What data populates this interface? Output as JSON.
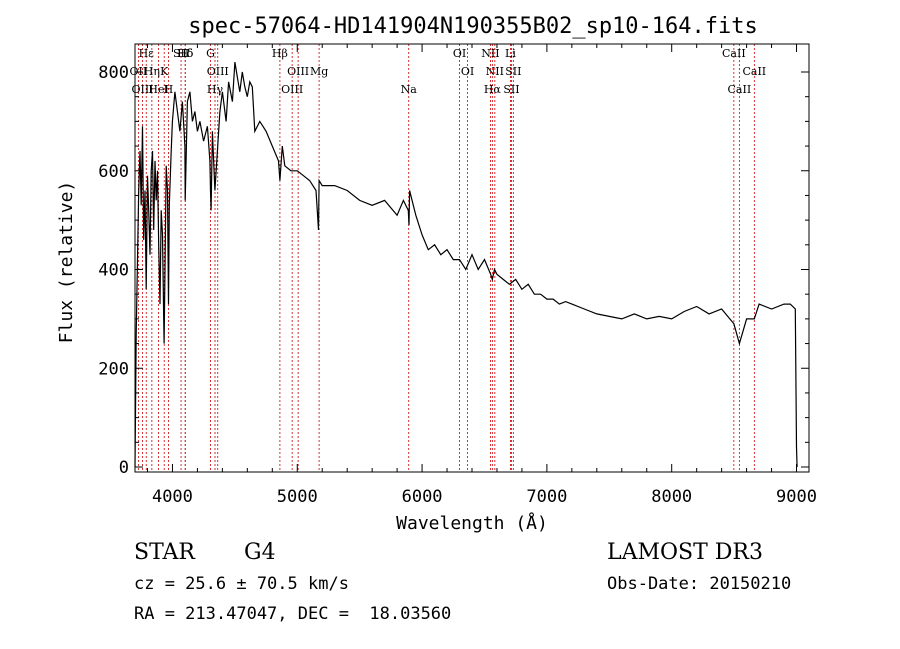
{
  "chart_data": {
    "type": "line",
    "title": "spec-57064-HD141904N190355B02_sp10-164.fits",
    "xlabel": "Wavelength (Å)",
    "ylabel": "Flux (relative)",
    "xlim": [
      3700,
      9100
    ],
    "ylim": [
      0,
      850
    ],
    "xticks": [
      4000,
      5000,
      6000,
      7000,
      8000,
      9000
    ],
    "yticks": [
      0,
      200,
      400,
      600,
      800
    ],
    "series": [
      {
        "name": "spectrum",
        "x": [
          3700,
          3710,
          3720,
          3730,
          3740,
          3750,
          3760,
          3770,
          3780,
          3790,
          3800,
          3810,
          3820,
          3830,
          3840,
          3850,
          3860,
          3870,
          3880,
          3890,
          3900,
          3910,
          3920,
          3930,
          3933,
          3940,
          3950,
          3960,
          3968,
          3975,
          3990,
          4000,
          4020,
          4040,
          4060,
          4080,
          4100,
          4102,
          4120,
          4140,
          4160,
          4180,
          4200,
          4220,
          4250,
          4280,
          4300,
          4305,
          4310,
          4320,
          4340,
          4360,
          4380,
          4400,
          4430,
          4450,
          4480,
          4500,
          4520,
          4540,
          4560,
          4580,
          4600,
          4620,
          4640,
          4660,
          4700,
          4750,
          4800,
          4850,
          4861,
          4880,
          4900,
          4950,
          5000,
          5050,
          5100,
          5150,
          5170,
          5175,
          5200,
          5300,
          5400,
          5500,
          5600,
          5700,
          5800,
          5850,
          5890,
          5895,
          5900,
          5950,
          6000,
          6050,
          6100,
          6150,
          6200,
          6250,
          6300,
          6350,
          6400,
          6450,
          6500,
          6550,
          6563,
          6580,
          6600,
          6650,
          6700,
          6750,
          6800,
          6850,
          6900,
          6950,
          7000,
          7050,
          7100,
          7150,
          7200,
          7300,
          7400,
          7500,
          7600,
          7700,
          7800,
          7900,
          8000,
          8100,
          8200,
          8300,
          8400,
          8498,
          8542,
          8600,
          8662,
          8700,
          8800,
          8900,
          8950,
          8990,
          9000,
          9005
        ],
        "y": [
          0,
          270,
          420,
          560,
          640,
          530,
          690,
          460,
          560,
          360,
          590,
          520,
          430,
          600,
          640,
          480,
          620,
          540,
          600,
          450,
          330,
          520,
          470,
          300,
          250,
          400,
          610,
          560,
          330,
          530,
          640,
          700,
          760,
          720,
          680,
          740,
          650,
          540,
          740,
          760,
          700,
          720,
          680,
          700,
          660,
          690,
          620,
          560,
          520,
          680,
          560,
          640,
          720,
          760,
          700,
          780,
          740,
          820,
          790,
          760,
          800,
          770,
          750,
          780,
          770,
          680,
          700,
          680,
          650,
          620,
          580,
          650,
          610,
          600,
          600,
          590,
          580,
          560,
          480,
          580,
          570,
          570,
          560,
          540,
          530,
          540,
          510,
          540,
          520,
          490,
          560,
          510,
          470,
          440,
          450,
          430,
          440,
          420,
          420,
          400,
          430,
          400,
          420,
          390,
          380,
          400,
          390,
          380,
          370,
          380,
          360,
          370,
          350,
          350,
          340,
          340,
          330,
          335,
          330,
          320,
          310,
          305,
          300,
          310,
          300,
          305,
          300,
          315,
          325,
          310,
          320,
          290,
          250,
          300,
          300,
          330,
          320,
          330,
          330,
          320,
          40,
          0
        ]
      }
    ],
    "line_markers": [
      {
        "label": "Hδ",
        "x": 4102
      },
      {
        "label": "OII",
        "x": 3727
      },
      {
        "label": "OIII",
        "x": 3760
      },
      {
        "label": "Hε",
        "x": 3790
      },
      {
        "label": "K",
        "x": 3934
      },
      {
        "label": "HeI",
        "x": 3889
      },
      {
        "label": "SII",
        "x": 4069
      },
      {
        "label": "Hη",
        "x": 3835
      },
      {
        "label": "H",
        "x": 3968
      },
      {
        "label": "Hδ",
        "x": 4103
      },
      {
        "label": "OIII",
        "x": 4363
      },
      {
        "label": "Hγ",
        "x": 4341
      },
      {
        "label": "G",
        "x": 4305
      },
      {
        "label": "OIII",
        "x": 5007
      },
      {
        "label": "OIII",
        "x": 4959
      },
      {
        "label": "Hβ",
        "x": 4861
      },
      {
        "label": "Mg",
        "x": 5175
      },
      {
        "label": "Na",
        "x": 5893
      },
      {
        "label": "OI",
        "x": 6300
      },
      {
        "label": "OI",
        "x": 6364
      },
      {
        "label": "Hα",
        "x": 6563
      },
      {
        "label": "NII",
        "x": 6548
      },
      {
        "label": "NII",
        "x": 6583
      },
      {
        "label": "SII",
        "x": 6716
      },
      {
        "label": "Li",
        "x": 6708
      },
      {
        "label": "SII",
        "x": 6731
      },
      {
        "label": "CaII",
        "x": 8542
      },
      {
        "label": "CaII",
        "x": 8498
      },
      {
        "label": "CaII",
        "x": 8662
      }
    ]
  },
  "info": {
    "object_type": "STAR",
    "subclass": "G4",
    "survey": "LAMOST DR3",
    "cz": "cz = 25.6 ± 70.5 km/s",
    "obs_date": "Obs-Date: 20150210",
    "coords": "RA = 213.47047, DEC =  18.03560"
  },
  "colors": {
    "spectrum": "#000000",
    "marker": "#cc0000",
    "axis": "#000000"
  }
}
